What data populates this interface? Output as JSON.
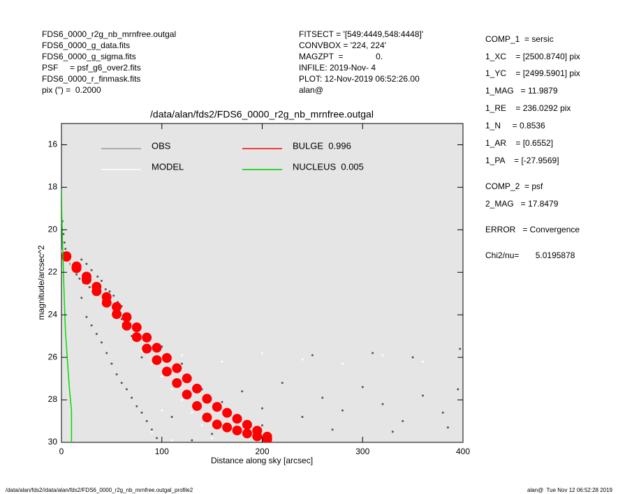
{
  "header": {
    "left": [
      "FDS6_0000_r2g_nb_mrnfree.outgal",
      "FDS6_0000_g_data.fits",
      "FDS6_0000_g_sigma.fits",
      "PSF     = psf_g6_over2.fits",
      "FDS6_0000_r_finmask.fits",
      "pix (\") =  0.2000"
    ],
    "middle": [
      "FITSECT = '[549:4449,548:4448]'",
      "CONVBOX = '224, 224'",
      "MAGZPT  =              0.",
      "INFILE: 2019-Nov- 4",
      "PLOT: 12-Nov-2019 06:52:26.00",
      "alan@"
    ],
    "right": [
      "COMP_1  = sersic",
      "1_XC    = [2500.8740] pix",
      "1_YC    = [2499.5901] pix",
      "1_MAG   = 11.9879",
      "1_RE    = 236.0292 pix",
      "1_N     = 0.8536",
      "1_AR    = [0.6552]",
      "1_PA    = [-27.9569]",
      "COMP_2  = psf",
      "2_MAG   = 17.8479",
      "ERROR   = Convergence",
      "Chi2/nu=       5.0195878"
    ]
  },
  "footer": {
    "left": "/data/alan/fds2//data/alan/fds2/FDS6_0000_r2g_nb_mrnfree.outgal_profile2",
    "right": "alan@  Tue Nov 12 06:52:28 2019"
  },
  "chart_data": {
    "type": "scatter",
    "title": "/data/alan/fds2/FDS6_0000_r2g_nb_mrnfree.outgal",
    "x_label": "Distance along sky [arcsec]",
    "y_label": "magnitude/arcsec^2",
    "xlim": [
      0,
      400
    ],
    "ylim": [
      30,
      15
    ],
    "xticks": [
      0,
      100,
      200,
      300,
      400
    ],
    "yticks": [
      16,
      18,
      20,
      22,
      24,
      26,
      28,
      30
    ],
    "background": "#e5e5e5",
    "series": [
      {
        "name": "OBS",
        "color": "#555555",
        "legend_color": "#999999",
        "mode": "markers",
        "marker_size": 3,
        "x": [
          1,
          2,
          3,
          4,
          5,
          7,
          9,
          11,
          13,
          15,
          18,
          20,
          22,
          25,
          28,
          30,
          33,
          36,
          40,
          44,
          48,
          52,
          56,
          60,
          20,
          25,
          30,
          35,
          40,
          45,
          50,
          55,
          60,
          65,
          70,
          75,
          80,
          85,
          90,
          95,
          120,
          140,
          160,
          180,
          200,
          220,
          240,
          260,
          280,
          300,
          320,
          340,
          360,
          380,
          395,
          250,
          310,
          350,
          397,
          150,
          200,
          270,
          330,
          385,
          110,
          130,
          60,
          70,
          80,
          100
        ],
        "values": [
          19.6,
          20.2,
          20.6,
          20.9,
          21.1,
          21.4,
          21.6,
          21.8,
          21.9,
          22.1,
          22.3,
          21.4,
          22.5,
          21.6,
          22.7,
          21.9,
          22.9,
          22.2,
          22.4,
          22.8,
          22.9,
          23.1,
          23.4,
          23.6,
          23.2,
          24.1,
          24.5,
          24.9,
          25.3,
          25.8,
          26.3,
          26.8,
          27.2,
          27.5,
          27.9,
          28.3,
          28.6,
          29.0,
          29.4,
          29.8,
          26.3,
          27.5,
          28.1,
          27.6,
          28.4,
          27.2,
          28.8,
          27.9,
          28.5,
          27.4,
          28.2,
          29.0,
          27.8,
          28.6,
          27.5,
          25.9,
          25.8,
          26.0,
          25.6,
          29.6,
          29.2,
          29.4,
          29.5,
          29.3,
          28.8,
          29.9,
          24.2,
          25.0,
          26.0,
          25.5
        ]
      },
      {
        "name": "MODEL",
        "color": "#ffffff",
        "legend_color": "#ffffff",
        "mode": "markers",
        "marker_size": 3,
        "x": [
          0,
          10,
          20,
          30,
          40,
          50,
          60,
          70,
          80,
          90,
          100,
          110,
          120,
          130,
          140,
          150,
          120,
          160,
          200,
          240,
          280,
          320,
          360,
          395,
          100,
          90,
          110
        ],
        "values": [
          21,
          21.6,
          22.2,
          22.8,
          23.4,
          23.9,
          24.5,
          25.1,
          25.7,
          26.3,
          26.9,
          27.5,
          28.0,
          28.6,
          29.2,
          29.8,
          25.9,
          26.2,
          25.8,
          26.1,
          26.3,
          25.9,
          26.2,
          26.0,
          28.5,
          29.5,
          29.9
        ]
      },
      {
        "name": "BULGE  0.996",
        "color": "#ff0000",
        "legend_color": "#ff0000",
        "mode": "markers",
        "marker_size": 14,
        "x": [
          5,
          5,
          15,
          15,
          25,
          25,
          35,
          35,
          45,
          45,
          55,
          55,
          65,
          65,
          75,
          75,
          85,
          85,
          95,
          95,
          105,
          105,
          115,
          115,
          125,
          125,
          135,
          135,
          145,
          145,
          155,
          155,
          165,
          165,
          175,
          175,
          185,
          185,
          195,
          195,
          205,
          205
        ],
        "values": [
          21.24,
          21.27,
          21.72,
          21.81,
          22.2,
          22.35,
          22.68,
          22.89,
          23.16,
          23.43,
          23.63,
          23.97,
          24.11,
          24.51,
          24.59,
          25.05,
          25.07,
          25.59,
          25.55,
          26.13,
          26.03,
          26.67,
          26.51,
          27.21,
          26.99,
          27.75,
          27.47,
          28.29,
          27.95,
          28.83,
          28.33,
          29.16,
          28.61,
          29.3,
          28.89,
          29.44,
          29.17,
          29.58,
          29.45,
          29.72,
          29.73,
          29.86
        ]
      },
      {
        "name": "NUCLEUS  0.005",
        "color": "#00dd00",
        "legend_color": "#00cc00",
        "mode": "line",
        "x": [
          0,
          0.3,
          1,
          2,
          3,
          4,
          6,
          8,
          10,
          10
        ],
        "values": [
          18.1,
          19.2,
          20.5,
          22,
          23.5,
          24.8,
          26.2,
          27.5,
          28.5,
          30
        ]
      }
    ]
  }
}
